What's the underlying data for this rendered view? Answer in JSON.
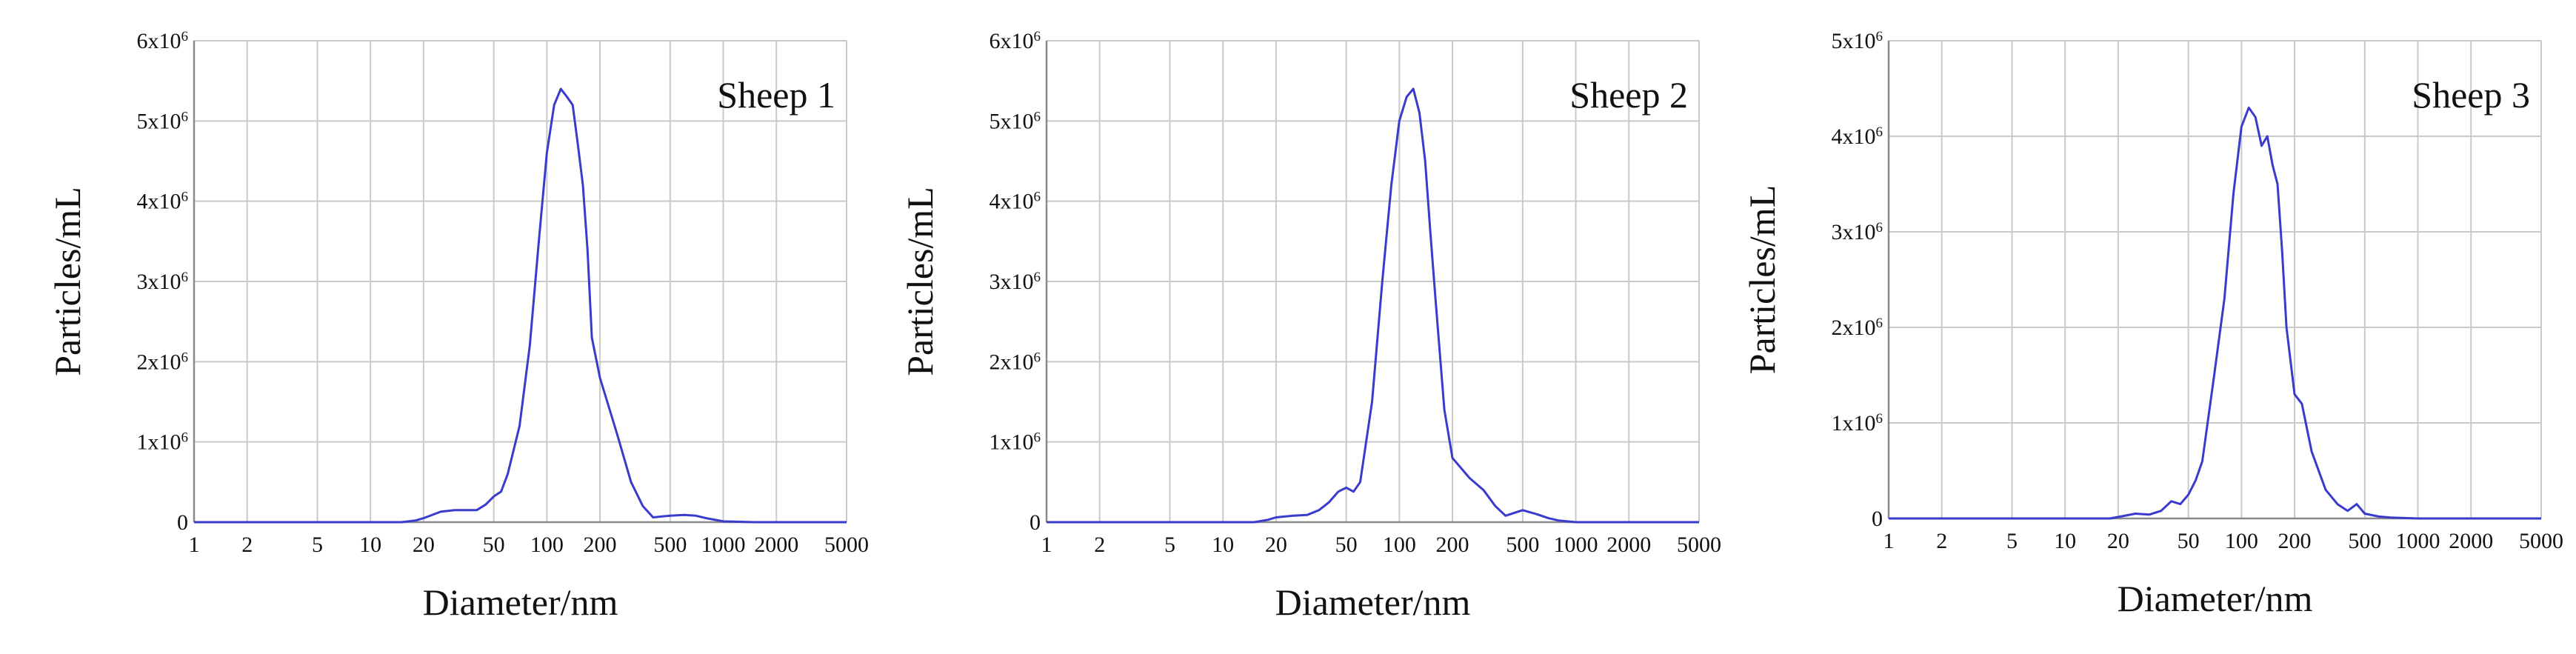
{
  "chart_data": [
    {
      "type": "line",
      "title": "Sheep 1",
      "xlabel": "Diameter/nm",
      "ylabel": "Particles/mL",
      "x_scale": "log",
      "xlim": [
        1,
        5000
      ],
      "ylim": [
        0,
        6000000
      ],
      "x_ticks": [
        1,
        2,
        5,
        10,
        20,
        50,
        100,
        200,
        500,
        1000,
        2000,
        5000
      ],
      "x_tick_labels": [
        "1",
        "2",
        "5",
        "10",
        "20",
        "50",
        "100",
        "200",
        "500",
        "1000",
        "2000",
        "5000"
      ],
      "y_ticks": [
        0,
        1000000,
        2000000,
        3000000,
        4000000,
        5000000,
        6000000
      ],
      "y_tick_labels": [
        "0",
        "1x10^6",
        "2x10^6",
        "3x10^6",
        "4x10^6",
        "5x10^6",
        "6x10^6"
      ],
      "grid": true,
      "line_color": "#3a3acc",
      "series": [
        {
          "x": [
            1,
            15,
            18,
            20,
            25,
            30,
            40,
            45,
            50,
            55,
            60,
            70,
            80,
            90,
            100,
            110,
            120,
            130,
            140,
            150,
            160,
            170,
            180,
            200,
            250,
            300,
            350,
            400,
            500,
            600,
            700,
            800,
            1000,
            1500,
            5000
          ],
          "y": [
            0,
            0,
            20000,
            50000,
            130000,
            150000,
            150000,
            220000,
            320000,
            380000,
            600000,
            1200000,
            2200000,
            3500000,
            4600000,
            5200000,
            5400000,
            5300000,
            5200000,
            4700000,
            4200000,
            3400000,
            2300000,
            1800000,
            1100000,
            500000,
            200000,
            60000,
            80000,
            90000,
            80000,
            50000,
            10000,
            0,
            0
          ]
        }
      ]
    },
    {
      "type": "line",
      "title": "Sheep 2",
      "xlabel": "Diameter/nm",
      "ylabel": "Particles/mL",
      "x_scale": "log",
      "xlim": [
        1,
        5000
      ],
      "ylim": [
        0,
        6000000
      ],
      "x_ticks": [
        1,
        2,
        5,
        10,
        20,
        50,
        100,
        200,
        500,
        1000,
        2000,
        5000
      ],
      "x_tick_labels": [
        "1",
        "2",
        "5",
        "10",
        "20",
        "50",
        "100",
        "200",
        "500",
        "1000",
        "2000",
        "5000"
      ],
      "y_ticks": [
        0,
        1000000,
        2000000,
        3000000,
        4000000,
        5000000,
        6000000
      ],
      "y_tick_labels": [
        "0",
        "1x10^6",
        "2x10^6",
        "3x10^6",
        "4x10^6",
        "5x10^6",
        "6x10^6"
      ],
      "grid": true,
      "line_color": "#3a3acc",
      "series": [
        {
          "x": [
            1,
            15,
            18,
            20,
            25,
            30,
            35,
            40,
            45,
            50,
            55,
            60,
            70,
            80,
            90,
            100,
            110,
            120,
            130,
            140,
            150,
            160,
            180,
            200,
            250,
            300,
            350,
            400,
            500,
            600,
            700,
            800,
            1000,
            5000
          ],
          "y": [
            0,
            0,
            30000,
            60000,
            80000,
            90000,
            150000,
            250000,
            380000,
            430000,
            380000,
            500000,
            1500000,
            3000000,
            4200000,
            5000000,
            5300000,
            5400000,
            5100000,
            4500000,
            3600000,
            2800000,
            1400000,
            800000,
            550000,
            400000,
            200000,
            80000,
            150000,
            100000,
            50000,
            20000,
            0,
            0
          ]
        }
      ]
    },
    {
      "type": "line",
      "title": "Sheep 3",
      "xlabel": "Diameter/nm",
      "ylabel": "Particles/mL",
      "x_scale": "log",
      "xlim": [
        1,
        5000
      ],
      "ylim": [
        0,
        5000000
      ],
      "x_ticks": [
        1,
        2,
        5,
        10,
        20,
        50,
        100,
        200,
        500,
        1000,
        2000,
        5000
      ],
      "x_tick_labels": [
        "1",
        "2",
        "5",
        "10",
        "20",
        "50",
        "100",
        "200",
        "500",
        "1000",
        "2000",
        "5000"
      ],
      "y_ticks": [
        0,
        1000000,
        2000000,
        3000000,
        4000000,
        5000000
      ],
      "y_tick_labels": [
        "0",
        "1x10^6",
        "2x10^6",
        "3x10^6",
        "4x10^6",
        "5x10^6"
      ],
      "grid": true,
      "line_color": "#3a3acc",
      "series": [
        {
          "x": [
            1,
            18,
            22,
            25,
            30,
            35,
            40,
            45,
            50,
            55,
            60,
            70,
            80,
            90,
            100,
            110,
            120,
            130,
            140,
            150,
            160,
            170,
            180,
            200,
            220,
            250,
            300,
            350,
            400,
            450,
            500,
            600,
            700,
            1000,
            5000
          ],
          "y": [
            0,
            0,
            30000,
            50000,
            40000,
            80000,
            180000,
            150000,
            250000,
            400000,
            600000,
            1500000,
            2300000,
            3400000,
            4100000,
            4300000,
            4200000,
            3900000,
            4000000,
            3700000,
            3500000,
            2800000,
            2000000,
            1300000,
            1200000,
            700000,
            300000,
            150000,
            80000,
            150000,
            50000,
            20000,
            10000,
            0,
            0
          ]
        }
      ]
    }
  ]
}
